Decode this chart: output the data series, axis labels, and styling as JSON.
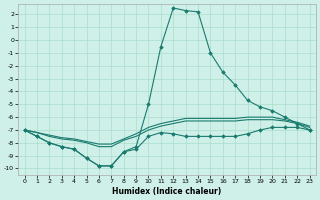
{
  "xlabel": "Humidex (Indice chaleur)",
  "background_color": "#cef0e8",
  "grid_color": "#aaddcc",
  "line_color": "#1a7a6e",
  "xlim": [
    -0.5,
    23.5
  ],
  "ylim": [
    -10.5,
    2.8
  ],
  "xticks": [
    0,
    1,
    2,
    3,
    4,
    5,
    6,
    7,
    8,
    9,
    10,
    11,
    12,
    13,
    14,
    15,
    16,
    17,
    18,
    19,
    20,
    21,
    22,
    23
  ],
  "yticks": [
    2,
    1,
    0,
    -1,
    -2,
    -3,
    -4,
    -5,
    -6,
    -7,
    -8,
    -9,
    -10
  ],
  "upper_x": [
    0,
    1,
    2,
    3,
    4,
    5,
    6,
    7,
    8,
    9,
    10,
    11,
    12,
    13,
    14,
    15,
    16,
    17,
    18,
    19,
    20,
    21,
    22,
    23
  ],
  "upper_y": [
    -7.0,
    -7.5,
    -8.0,
    -8.3,
    -8.5,
    -9.2,
    -9.8,
    -9.8,
    -8.7,
    -8.3,
    -5.0,
    -0.5,
    2.5,
    2.3,
    2.2,
    -1.0,
    -2.5,
    -3.5,
    -4.7,
    -5.2,
    -5.5,
    -6.0,
    -6.5,
    -7.0
  ],
  "lower_x": [
    0,
    1,
    2,
    3,
    4,
    5,
    6,
    7,
    8,
    9,
    10,
    11,
    12,
    13,
    14,
    15,
    16,
    17,
    18,
    19,
    20,
    21,
    22,
    23
  ],
  "lower_y": [
    -7.0,
    -7.5,
    -8.0,
    -8.3,
    -8.5,
    -9.2,
    -9.8,
    -9.8,
    -8.7,
    -8.5,
    -7.5,
    -7.2,
    -7.3,
    -7.5,
    -7.5,
    -7.5,
    -7.5,
    -7.5,
    -7.3,
    -7.0,
    -6.8,
    -6.8,
    -6.8,
    -7.0
  ],
  "flat1_x": [
    0,
    1,
    2,
    3,
    4,
    5,
    6,
    7,
    8,
    9,
    10,
    11,
    12,
    13,
    14,
    15,
    16,
    17,
    18,
    19,
    20,
    21,
    22,
    23
  ],
  "flat1_y": [
    -7.0,
    -7.2,
    -7.5,
    -7.7,
    -7.8,
    -8.0,
    -8.3,
    -8.3,
    -7.8,
    -7.5,
    -7.0,
    -6.7,
    -6.5,
    -6.3,
    -6.3,
    -6.3,
    -6.3,
    -6.3,
    -6.2,
    -6.2,
    -6.2,
    -6.3,
    -6.5,
    -6.8
  ],
  "flat2_x": [
    0,
    1,
    2,
    3,
    4,
    5,
    6,
    7,
    8,
    9,
    10,
    11,
    12,
    13,
    14,
    15,
    16,
    17,
    18,
    19,
    20,
    21,
    22,
    23
  ],
  "flat2_y": [
    -7.0,
    -7.2,
    -7.4,
    -7.6,
    -7.7,
    -7.9,
    -8.1,
    -8.1,
    -7.7,
    -7.3,
    -6.8,
    -6.5,
    -6.3,
    -6.1,
    -6.1,
    -6.1,
    -6.1,
    -6.1,
    -6.0,
    -6.0,
    -6.0,
    -6.2,
    -6.4,
    -6.7
  ]
}
